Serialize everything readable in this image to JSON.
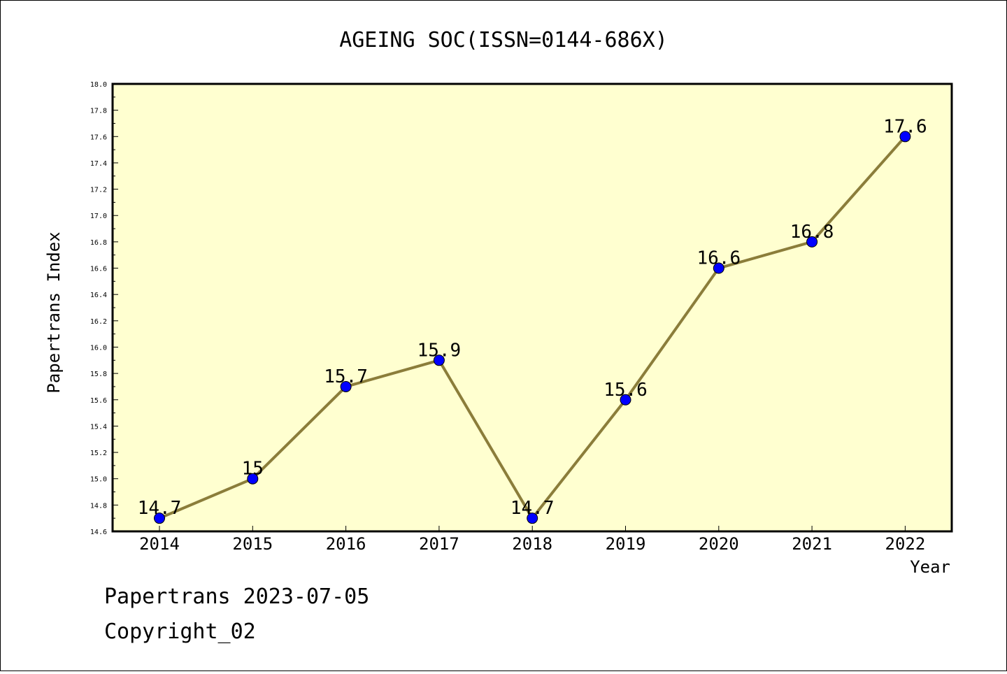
{
  "chart_data": {
    "type": "line",
    "title": "AGEING SOC(ISSN=0144-686X)",
    "xlabel": "Year",
    "ylabel": "Papertrans Index",
    "categories": [
      "2014",
      "2015",
      "2016",
      "2017",
      "2018",
      "2019",
      "2020",
      "2021",
      "2022"
    ],
    "values": [
      14.7,
      15.0,
      15.7,
      15.9,
      14.7,
      15.6,
      16.6,
      16.8,
      17.6
    ],
    "data_labels": [
      "14.7",
      "15",
      "15.7",
      "15.9",
      "14.7",
      "15.6",
      "16.6",
      "16.8",
      "17.6"
    ],
    "ylim": [
      14.6,
      18.0
    ],
    "yticks": [
      "14.6",
      "14.8",
      "15.0",
      "15.2",
      "15.4",
      "15.6",
      "15.8",
      "16.0",
      "16.2",
      "16.4",
      "16.6",
      "16.8",
      "17.0",
      "17.2",
      "17.4",
      "17.6",
      "17.8",
      "18.0"
    ],
    "grid": false,
    "line_color": "#8b7d3a",
    "marker_color": "#0000ff",
    "plot_background": "#ffffd0"
  },
  "footer": {
    "line1": "Papertrans 2023-07-05",
    "line2": "Copyright_02"
  }
}
